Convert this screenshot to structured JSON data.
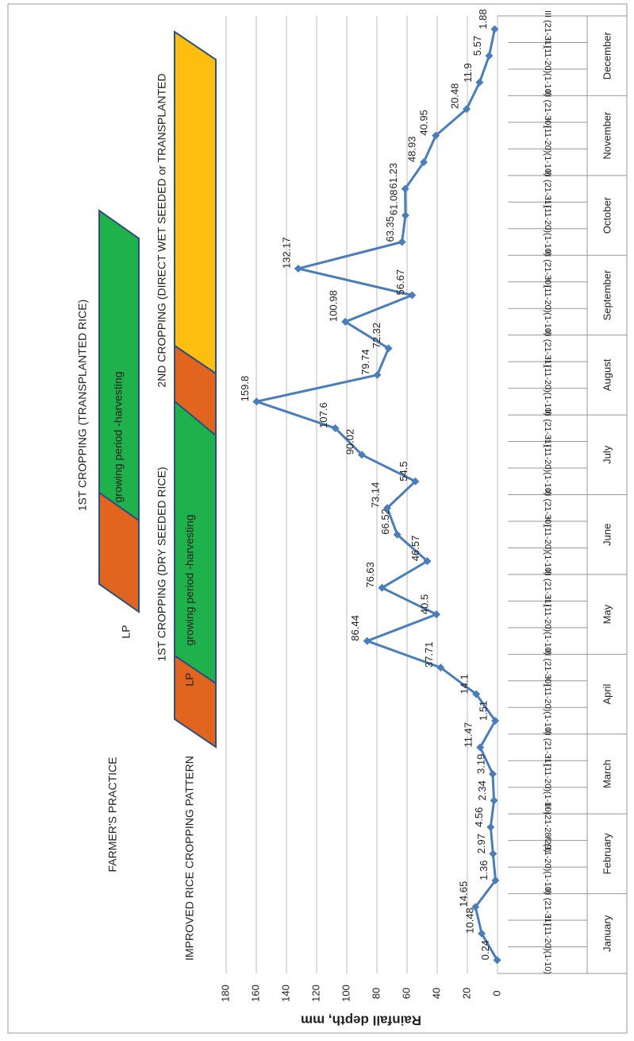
{
  "chart_data": {
    "type": "line",
    "y_label": "Rainfall depth, mm",
    "ylim": [
      0,
      180
    ],
    "yticks": [
      0,
      20,
      40,
      60,
      80,
      100,
      120,
      140,
      160,
      180
    ],
    "grid": true,
    "color": "#4a7ebb",
    "months": [
      "January",
      "February",
      "March",
      "April",
      "May",
      "June",
      "July",
      "August",
      "September",
      "October",
      "November",
      "December"
    ],
    "categories": [
      "I (1-10)",
      "II (11-20)",
      "III (21-31)",
      "I (1-10)",
      "II (11-20)",
      "III (21-28/29)",
      "I (1-10)",
      "II (11-20)",
      "III (21-31)",
      "I (1-10)",
      "II (11-20)",
      "III (21-30)",
      "I (1-10)",
      "II (11-20)",
      "III (21-31)",
      "I (1-10)",
      "II (11-20)",
      "III (21-30)",
      "I (1-10)",
      "II (11-20)",
      "III (21-31)",
      "I (1-10)",
      "II (11-20)",
      "III (21-31)",
      "I (1-10)",
      "II (11-20)",
      "III (21-30)",
      "I (1-10)",
      "II (11-20)",
      "III (21-31)",
      "I (1-10)",
      "II (11-20)",
      "III (21-30)",
      "I (1-10)",
      "II (11-20)",
      "III (21-31)"
    ],
    "values": [
      0.24,
      10.48,
      14.65,
      1.36,
      2.97,
      4.56,
      2.34,
      3.19,
      11.47,
      1.51,
      14.1,
      37.71,
      86.44,
      40.5,
      76.63,
      46.57,
      66.52,
      73.14,
      54.5,
      90.02,
      107.6,
      159.8,
      79.74,
      72.32,
      100.98,
      56.67,
      132.17,
      63.35,
      61.08,
      61.23,
      48.93,
      40.95,
      20.48,
      11.9,
      5.57,
      1.88
    ],
    "annotations": [
      "FARMER'S PRACTICE",
      "LP",
      "growing period -harvesting",
      "1ST CROPPING (TRANSPLANTED RICE)",
      "IMPROVED RICE CROPPING PATTERN",
      "LP",
      "growing period -harvesting",
      "1ST CROPPING (DRY SEEDED RICE)",
      "2ND CROPPING (DIRECT WET SEEDED or TRANSPLANTED"
    ]
  }
}
